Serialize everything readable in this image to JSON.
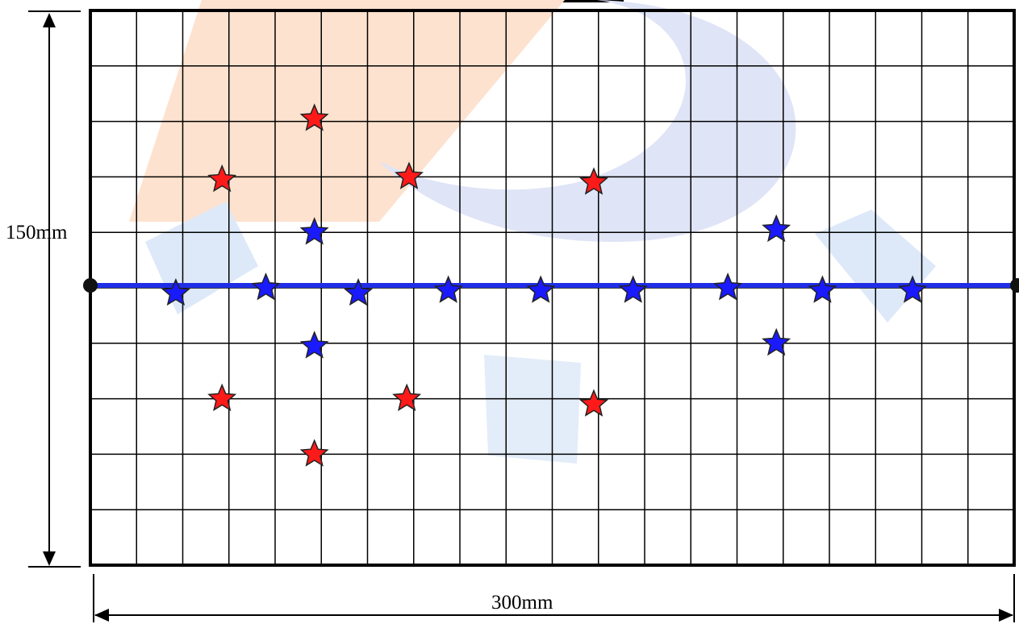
{
  "dimensions": {
    "height_label": "150mm",
    "width_label": "300mm"
  },
  "grid": {
    "columns": 20,
    "rows": 10
  },
  "axis": {
    "color": "#1f2ee6",
    "row": 5
  },
  "colors": {
    "red_star": "#ff1a1a",
    "blue_star": "#1a1aff",
    "watermark_orange": "#fde2cf",
    "watermark_blue": "#dfe4f6",
    "grid_line": "#000000"
  },
  "red_stars": [
    {
      "col": 2.85,
      "row": 3.05
    },
    {
      "col": 4.85,
      "row": 1.95
    },
    {
      "col": 6.9,
      "row": 3.0
    },
    {
      "col": 10.9,
      "row": 3.1
    },
    {
      "col": 2.85,
      "row": 7.0
    },
    {
      "col": 4.85,
      "row": 8.0
    },
    {
      "col": 6.85,
      "row": 7.0
    },
    {
      "col": 10.9,
      "row": 7.1
    }
  ],
  "blue_stars": [
    {
      "col": 1.85,
      "row": 5.1
    },
    {
      "col": 3.8,
      "row": 5.0
    },
    {
      "col": 5.8,
      "row": 5.1
    },
    {
      "col": 7.75,
      "row": 5.05
    },
    {
      "col": 9.75,
      "row": 5.05
    },
    {
      "col": 11.75,
      "row": 5.05
    },
    {
      "col": 13.8,
      "row": 5.0
    },
    {
      "col": 15.85,
      "row": 5.05
    },
    {
      "col": 17.8,
      "row": 5.05
    },
    {
      "col": 4.85,
      "row": 4.0
    },
    {
      "col": 4.85,
      "row": 6.05
    },
    {
      "col": 14.85,
      "row": 3.95
    },
    {
      "col": 14.85,
      "row": 6.0
    }
  ]
}
